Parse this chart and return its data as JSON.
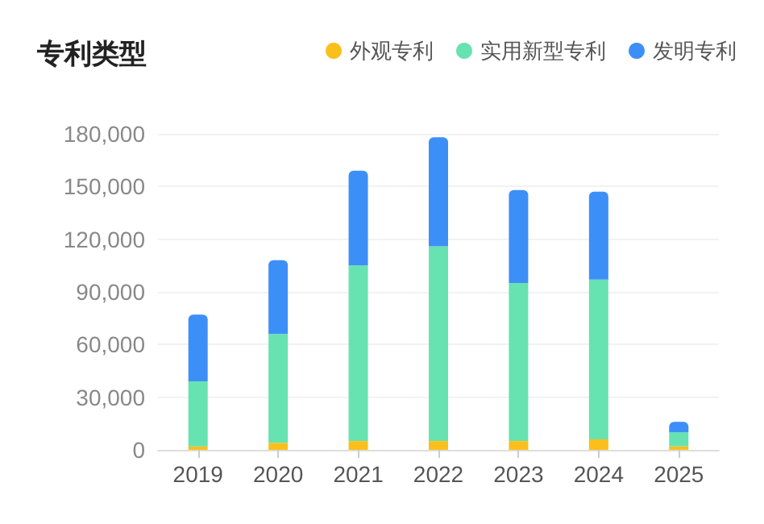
{
  "chart_data": {
    "type": "bar",
    "title": "专利类型",
    "stacked": true,
    "legend": "top right",
    "grid": "y",
    "categories": [
      "2019",
      "2020",
      "2021",
      "2022",
      "2023",
      "2024",
      "2025"
    ],
    "series": [
      {
        "name": "外观专利",
        "color": "#fbbf1c",
        "values": [
          2000,
          4000,
          5000,
          5000,
          5000,
          6000,
          2000
        ]
      },
      {
        "name": "实用新型专利",
        "color": "#66e3b0",
        "values": [
          37000,
          62000,
          100000,
          111000,
          90000,
          91000,
          8000
        ]
      },
      {
        "name": "发明专利",
        "color": "#3d8ff8",
        "values": [
          38000,
          42000,
          54000,
          62000,
          53000,
          50000,
          6000
        ]
      }
    ],
    "ylim": [
      0,
      180000
    ],
    "yticks": [
      0,
      {
        "value": 30000,
        "label": "30,000"
      },
      {
        "value": 60000,
        "label": "60,000"
      },
      {
        "value": 90000,
        "label": "90,000"
      },
      {
        "value": 120000,
        "label": "120,000"
      },
      {
        "value": 150000,
        "label": "150,000"
      },
      {
        "value": 180000,
        "label": "180,000"
      }
    ]
  }
}
